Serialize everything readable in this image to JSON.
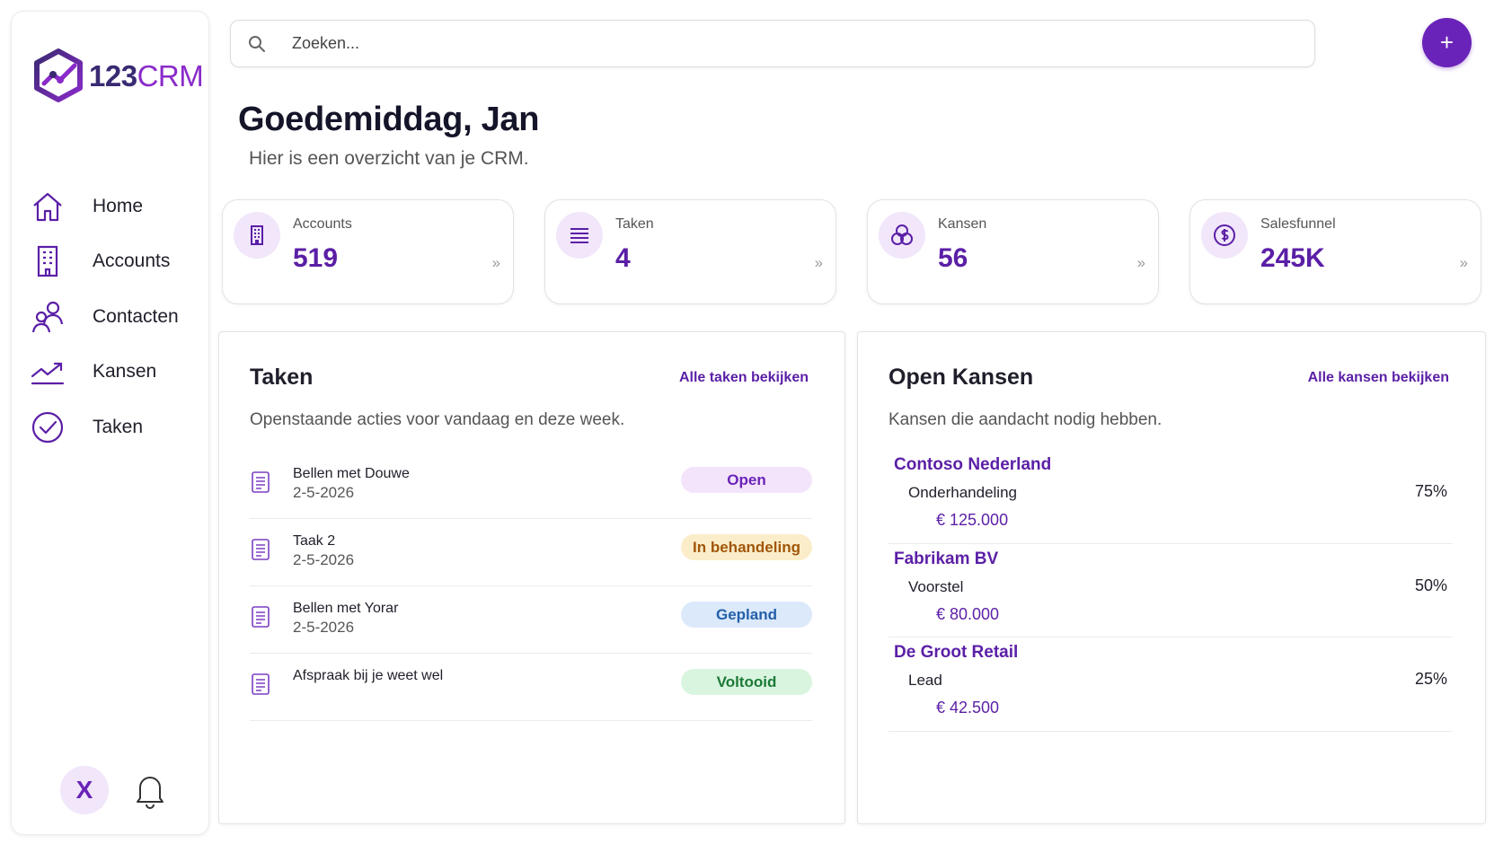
{
  "brand": {
    "number": "123",
    "name": "CRM",
    "primary_color": "#6a23b8"
  },
  "nav": {
    "items": [
      {
        "label": "Home",
        "icon": "home-icon"
      },
      {
        "label": "Accounts",
        "icon": "building-icon"
      },
      {
        "label": "Contacten",
        "icon": "contacts-icon"
      },
      {
        "label": "Kansen",
        "icon": "trend-icon"
      },
      {
        "label": "Taken",
        "icon": "check-circle-icon"
      }
    ]
  },
  "user": {
    "initial": "X"
  },
  "search": {
    "placeholder": "Zoeken...",
    "value": ""
  },
  "header": {
    "add_label": "+"
  },
  "greeting": {
    "title": "Goedemiddag, Jan",
    "subtitle": "Hier is een overzicht van je CRM."
  },
  "stats": [
    {
      "label": "Accounts",
      "value": "519",
      "icon": "building-icon"
    },
    {
      "label": "Taken",
      "value": "4",
      "icon": "list-icon"
    },
    {
      "label": "Kansen",
      "value": "56",
      "icon": "coins-icon"
    },
    {
      "label": "Salesfunnel",
      "value": "245K",
      "icon": "dollar-icon"
    }
  ],
  "stat_chevron": "››",
  "tasks": {
    "title": "Taken",
    "link": "Alle taken bekijken",
    "subtitle": "Openstaande acties voor vandaag en deze week.",
    "items": [
      {
        "title": "Bellen met Douwe",
        "date": "2-5-2026",
        "status": "Open"
      },
      {
        "title": "Taak 2",
        "date": "2-5-2026",
        "status": "In behandeling"
      },
      {
        "title": "Bellen met Yorar",
        "date": "2-5-2026",
        "status": "Gepland"
      },
      {
        "title": "Afspraak bij je weet wel",
        "date": "",
        "status": "Voltooid"
      }
    ]
  },
  "opportunities": {
    "title": "Open Kansen",
    "link": "Alle kansen bekijken",
    "subtitle": "Kansen die aandacht nodig hebben.",
    "items": [
      {
        "name": "Contoso Nederland",
        "stage": "Onderhandeling",
        "amount": "€ 125.000",
        "probability": "75%"
      },
      {
        "name": "Fabrikam BV",
        "stage": "Voorstel",
        "amount": "€ 80.000",
        "probability": "50%"
      },
      {
        "name": "De Groot Retail",
        "stage": "Lead",
        "amount": "€ 42.500",
        "probability": "25%"
      }
    ]
  }
}
